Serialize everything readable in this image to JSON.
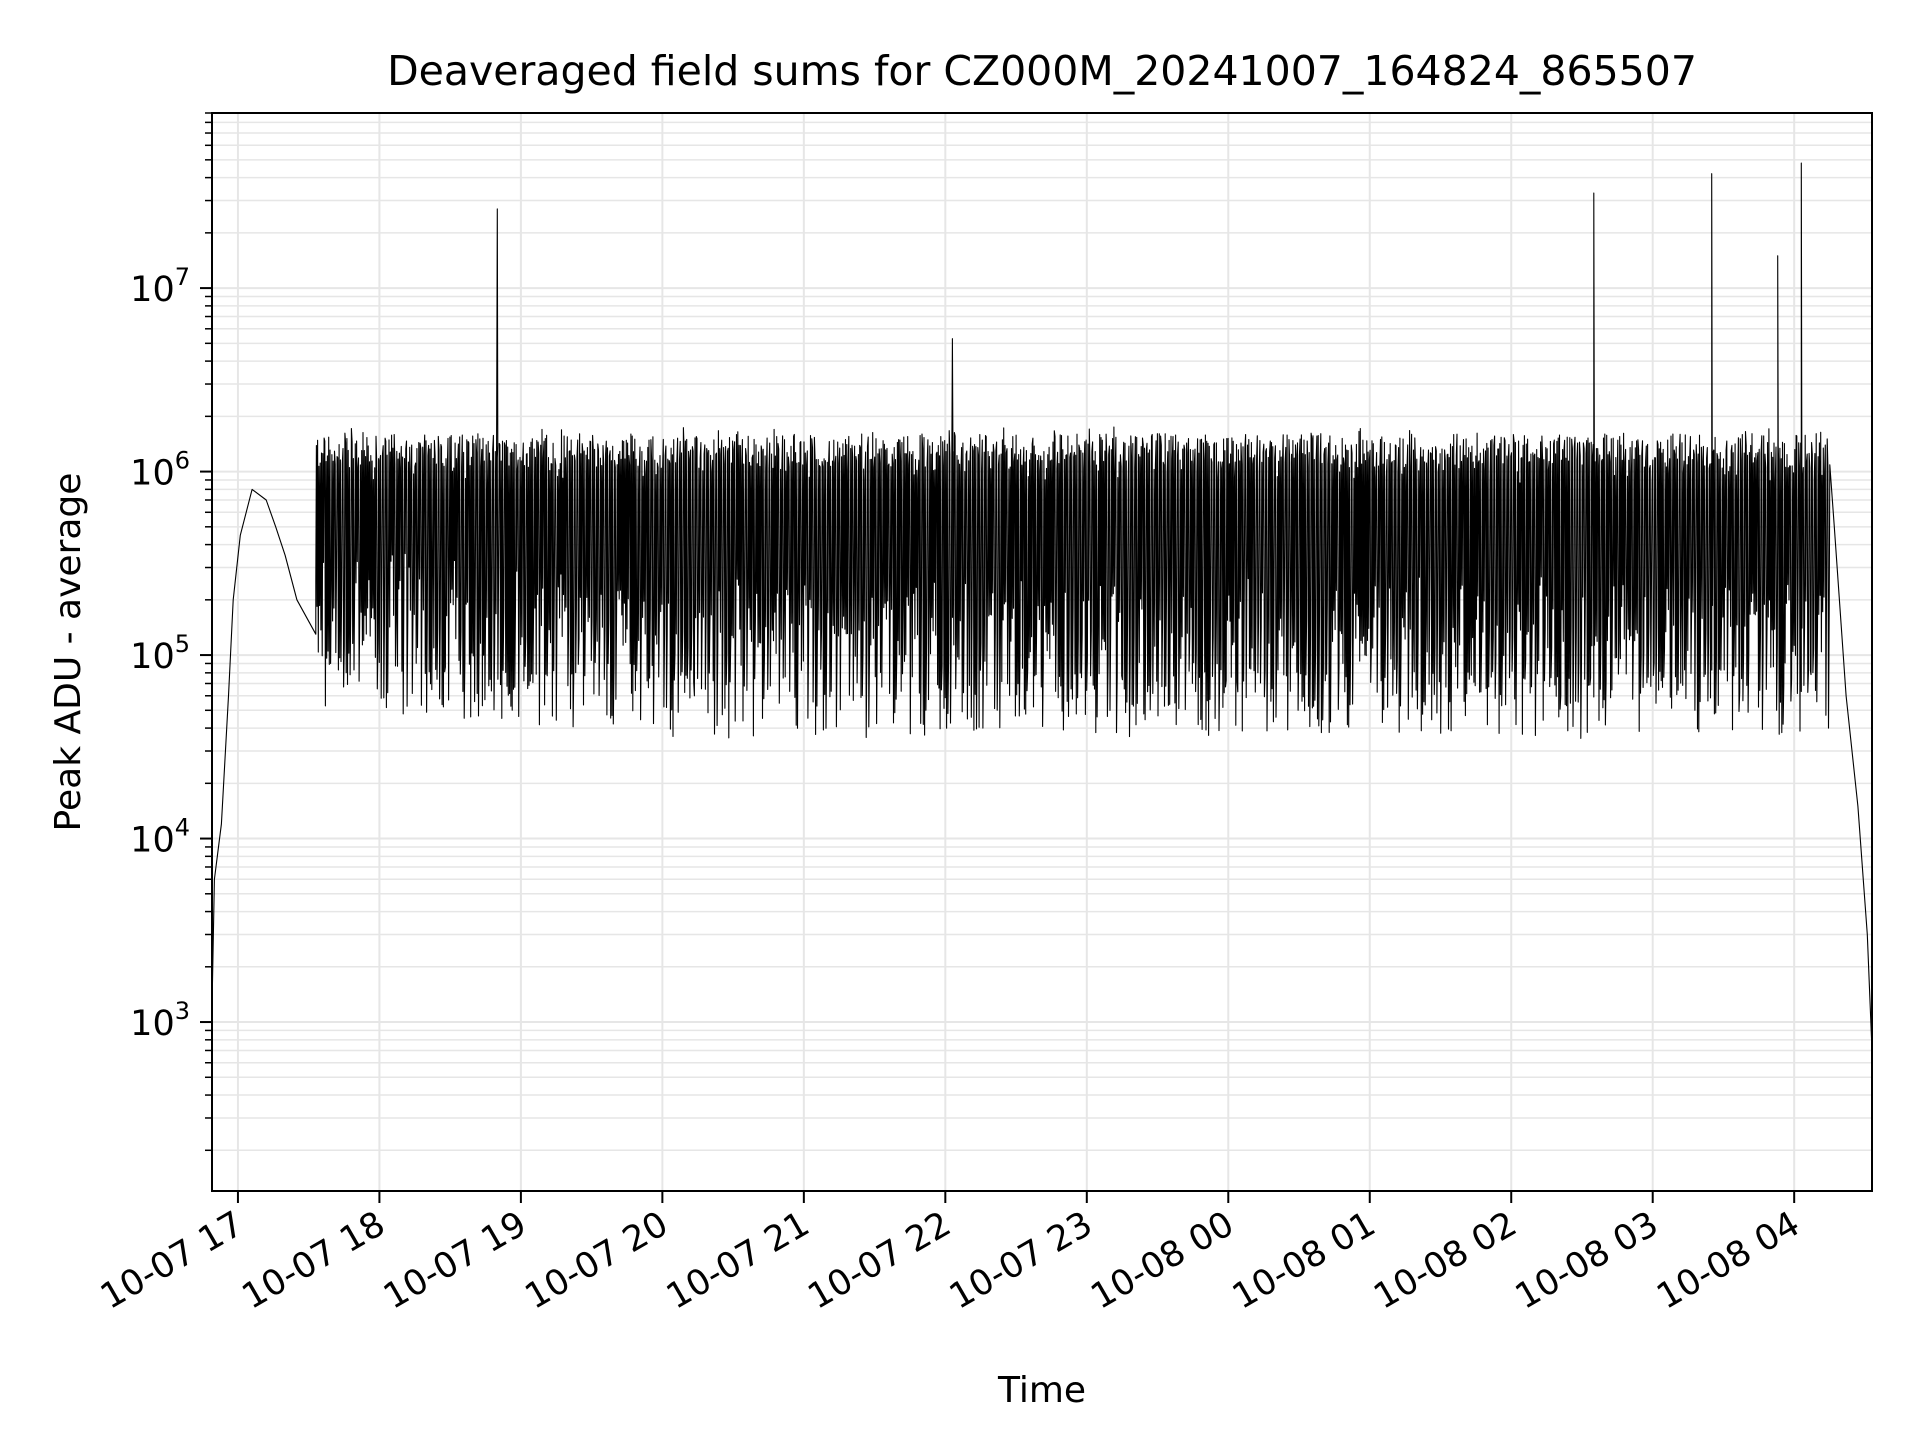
{
  "chart_data": {
    "type": "line",
    "title": "Deaveraged field sums for CZ000M_20241007_164824_865507",
    "xlabel": "Time",
    "ylabel": "Peak ADU - average",
    "yscale": "log",
    "ylim": [
      120,
      90000000
    ],
    "xlim": [
      "2024-10-07 16:49",
      "2024-10-08 04:33"
    ],
    "grid": true,
    "line_color": "#000000",
    "grid_color": "#e6e6e6",
    "x_ticks": [
      {
        "t": "2024-10-07 17:00",
        "label": "10-07 17"
      },
      {
        "t": "2024-10-07 18:00",
        "label": "10-07 18"
      },
      {
        "t": "2024-10-07 19:00",
        "label": "10-07 19"
      },
      {
        "t": "2024-10-07 20:00",
        "label": "10-07 20"
      },
      {
        "t": "2024-10-07 21:00",
        "label": "10-07 21"
      },
      {
        "t": "2024-10-07 22:00",
        "label": "10-07 22"
      },
      {
        "t": "2024-10-07 23:00",
        "label": "10-07 23"
      },
      {
        "t": "2024-10-08 00:00",
        "label": "10-08 00"
      },
      {
        "t": "2024-10-08 01:00",
        "label": "10-08 01"
      },
      {
        "t": "2024-10-08 02:00",
        "label": "10-08 02"
      },
      {
        "t": "2024-10-08 03:00",
        "label": "10-08 03"
      },
      {
        "t": "2024-10-08 04:00",
        "label": "10-08 04"
      }
    ],
    "y_ticks": [
      {
        "value": 1000,
        "base": "10",
        "exp": "3"
      },
      {
        "value": 10000,
        "base": "10",
        "exp": "4"
      },
      {
        "value": 100000,
        "base": "10",
        "exp": "5"
      },
      {
        "value": 1000000,
        "base": "10",
        "exp": "6"
      },
      {
        "value": 10000000,
        "base": "10",
        "exp": "7"
      }
    ],
    "series": [
      {
        "values_description_note": "",
        "points": [
          [
            "2024-10-07 16:49",
            1200
          ],
          [
            "2024-10-07 16:50",
            6000
          ],
          [
            "2024-10-07 16:53",
            12000
          ],
          [
            "2024-10-07 16:56",
            60000
          ],
          [
            "2024-10-07 16:58",
            200000
          ],
          [
            "2024-10-07 17:01",
            450000
          ],
          [
            "2024-10-07 17:06",
            800000
          ],
          [
            "2024-10-07 17:12",
            700000
          ],
          [
            "2024-10-07 17:16",
            500000
          ],
          [
            "2024-10-07 17:20",
            350000
          ],
          [
            "2024-10-07 17:25",
            200000
          ],
          [
            "2024-10-07 17:33",
            130000
          ],
          [
            "2024-10-07 17:45",
            90000
          ],
          [
            "2024-10-07 18:00",
            80000
          ],
          [
            "2024-10-07 18:30",
            75000
          ],
          [
            "2024-10-07 18:50",
            27000000
          ],
          [
            "2024-10-07 19:30",
            70000
          ],
          [
            "2024-10-07 20:30",
            65000
          ],
          [
            "2024-10-07 21:30",
            65000
          ],
          [
            "2024-10-07 22:03",
            5300000
          ],
          [
            "2024-10-07 22:30",
            60000
          ],
          [
            "2024-10-07 23:30",
            60000
          ],
          [
            "2024-10-08 00:30",
            60000
          ],
          [
            "2024-10-08 01:30",
            60000
          ],
          [
            "2024-10-08 02:35",
            33000000
          ],
          [
            "2024-10-08 03:10",
            70000
          ],
          [
            "2024-10-08 03:25",
            42000000
          ],
          [
            "2024-10-08 03:53",
            15000000
          ],
          [
            "2024-10-08 04:03",
            48000000
          ],
          [
            "2024-10-08 04:10",
            900000
          ],
          [
            "2024-10-08 04:17",
            500000
          ],
          [
            "2024-10-08 04:22",
            60000
          ],
          [
            "2024-10-08 04:27",
            15000
          ],
          [
            "2024-10-08 04:31",
            3000
          ],
          [
            "2024-10-08 04:33",
            700
          ]
        ],
        "band": {
          "start": "2024-10-07 17:33",
          "end": "2024-10-08 04:15",
          "upper": 1400000,
          "lower": 60000
        }
      }
    ]
  }
}
